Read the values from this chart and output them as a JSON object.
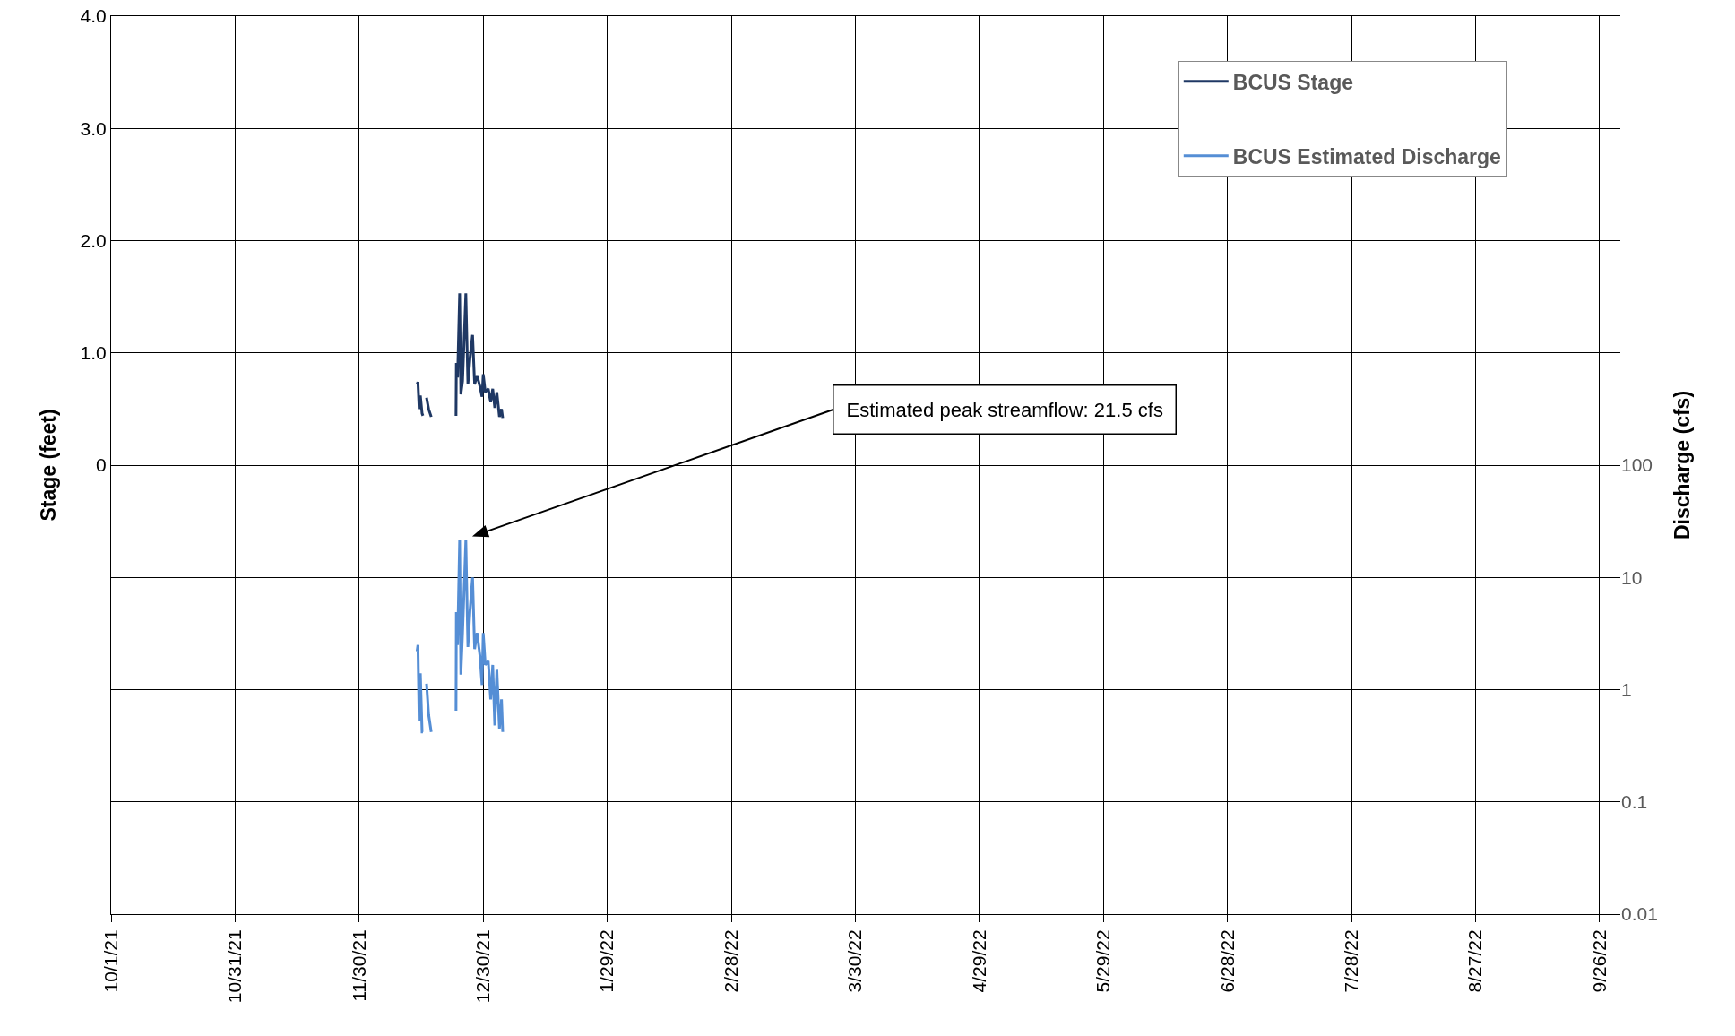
{
  "chart_data": {
    "type": "line",
    "ylabel": "Stage (feet)",
    "y2label": "Discharge (cfs)",
    "annotations": [
      "Estimated peak streamflow: 21.5 cfs"
    ],
    "x": [
      "2021-12-14T00:00",
      "2021-12-14T05:00",
      "2021-12-14T12:00",
      "2021-12-14T19:00",
      "2021-12-15T05:00",
      "2021-12-15T10:00",
      "2021-12-16T00:00",
      "2021-12-16T07:00",
      "2021-12-16T19:00",
      "2021-12-17T10:00",
      "2021-12-20T00:00",
      "2021-12-23T10:00",
      "2021-12-23T12:00",
      "2021-12-23T19:00",
      "2021-12-24T07:00",
      "2021-12-24T14:00",
      "2021-12-25T00:00",
      "2021-12-25T19:00",
      "2021-12-26T07:00",
      "2021-12-26T19:00",
      "2021-12-27T10:00",
      "2021-12-27T22:00",
      "2021-12-28T12:00",
      "2021-12-29T05:00",
      "2021-12-29T17:00",
      "2021-12-30T00:00",
      "2021-12-30T12:00",
      "2021-12-31T05:00",
      "2021-12-31T19:00",
      "2022-01-01T07:00",
      "2022-01-01T19:00",
      "2022-01-02T07:00",
      "2022-01-02T22:00",
      "2022-01-03T10:00",
      "2022-01-03T17:00"
    ],
    "series": [
      {
        "name": "BCUS Stage",
        "color": "#1f3864",
        "values": [
          0.72,
          0.74,
          0.5,
          0.62,
          0.46,
          0.44,
          null,
          0.6,
          0.5,
          0.43,
          null,
          0.44,
          0.91,
          0.78,
          1.53,
          0.63,
          0.75,
          1.53,
          0.72,
          0.95,
          1.16,
          0.72,
          0.8,
          0.7,
          0.61,
          0.81,
          0.65,
          0.68,
          0.56,
          0.68,
          0.51,
          0.65,
          0.43,
          0.5,
          0.42
        ]
      },
      {
        "name": "BCUS Estimated Discharge",
        "color": "#558ed5",
        "axis": "y2",
        "values": [
          2.2,
          2.5,
          0.52,
          1.4,
          0.42,
          0.42,
          null,
          1.13,
          0.6,
          0.42,
          null,
          0.65,
          4.9,
          2.5,
          21.5,
          1.36,
          3.2,
          21.5,
          2.4,
          5,
          10,
          2.3,
          3.2,
          2,
          1.1,
          3.2,
          1.66,
          1.8,
          0.82,
          1.66,
          0.48,
          1.5,
          0.45,
          0.82,
          0.42
        ]
      }
    ],
    "xlim": [
      "2021-10-01",
      "2022-10-01"
    ],
    "xticks": [
      {
        "value": "2021-10-01",
        "label": "10/1/21"
      },
      {
        "value": "2021-10-31",
        "label": "10/31/21"
      },
      {
        "value": "2021-11-30",
        "label": "11/30/21"
      },
      {
        "value": "2021-12-30",
        "label": "12/30/21"
      },
      {
        "value": "2022-01-29",
        "label": "1/29/22"
      },
      {
        "value": "2022-02-28",
        "label": "2/28/22"
      },
      {
        "value": "2022-03-30",
        "label": "3/30/22"
      },
      {
        "value": "2022-04-29",
        "label": "4/29/22"
      },
      {
        "value": "2022-05-29",
        "label": "5/29/22"
      },
      {
        "value": "2022-06-28",
        "label": "6/28/22"
      },
      {
        "value": "2022-07-28",
        "label": "7/28/22"
      },
      {
        "value": "2022-08-27",
        "label": "8/27/22"
      },
      {
        "value": "2022-09-26",
        "label": "9/26/22"
      }
    ],
    "ylim": [
      -4,
      4
    ],
    "yticks": [
      {
        "value": -4,
        "label": null
      },
      {
        "value": -3,
        "label": null
      },
      {
        "value": -2,
        "label": null
      },
      {
        "value": -1,
        "label": null
      },
      0,
      {
        "value": 1,
        "label": "1.0"
      },
      {
        "value": 2,
        "label": "2.0"
      },
      {
        "value": 3,
        "label": "3.0"
      },
      {
        "value": 4,
        "label": "4.0"
      }
    ],
    "log": "y2",
    "y2lim": [
      0.01,
      1000000
    ],
    "y2ticks": [
      0.01,
      0.1,
      1,
      10,
      100
    ],
    "grid": true,
    "legend": "top right",
    "marker": "none",
    "line_style": "solid"
  }
}
